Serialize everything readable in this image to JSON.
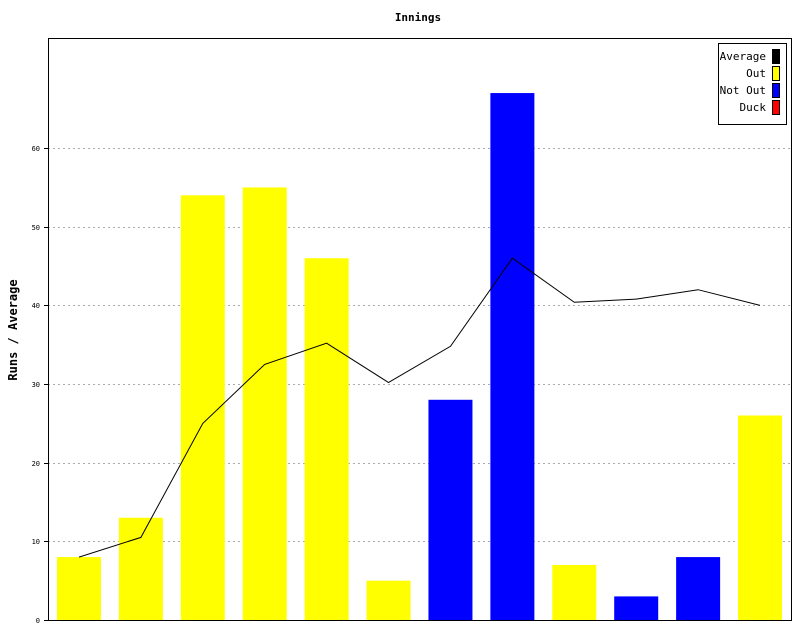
{
  "chart_data": {
    "type": "bar",
    "title": "Innings",
    "ylabel": "Runs / Average",
    "xlabel": "",
    "ylim": [
      0,
      74
    ],
    "yticks": [
      0,
      10,
      20,
      30,
      40,
      50,
      60
    ],
    "grid": true,
    "legend_position": "top-right",
    "legend": [
      {
        "name": "Average",
        "color": "#000000"
      },
      {
        "name": "Out",
        "color": "#ffff00"
      },
      {
        "name": "Not Out",
        "color": "#0000ff"
      },
      {
        "name": "Duck",
        "color": "#ff0000"
      }
    ],
    "bars": [
      {
        "value": 8,
        "status": "Out"
      },
      {
        "value": 13,
        "status": "Out"
      },
      {
        "value": 54,
        "status": "Out"
      },
      {
        "value": 55,
        "status": "Out"
      },
      {
        "value": 46,
        "status": "Out"
      },
      {
        "value": 5,
        "status": "Out"
      },
      {
        "value": 28,
        "status": "Not Out"
      },
      {
        "value": 67,
        "status": "Not Out"
      },
      {
        "value": 7,
        "status": "Out"
      },
      {
        "value": 3,
        "status": "Not Out"
      },
      {
        "value": 8,
        "status": "Not Out"
      },
      {
        "value": 26,
        "status": "Out"
      }
    ],
    "average": [
      8,
      10.5,
      25,
      32.5,
      35.2,
      30.2,
      34.8,
      46,
      40.4,
      40.8,
      42,
      40
    ]
  }
}
